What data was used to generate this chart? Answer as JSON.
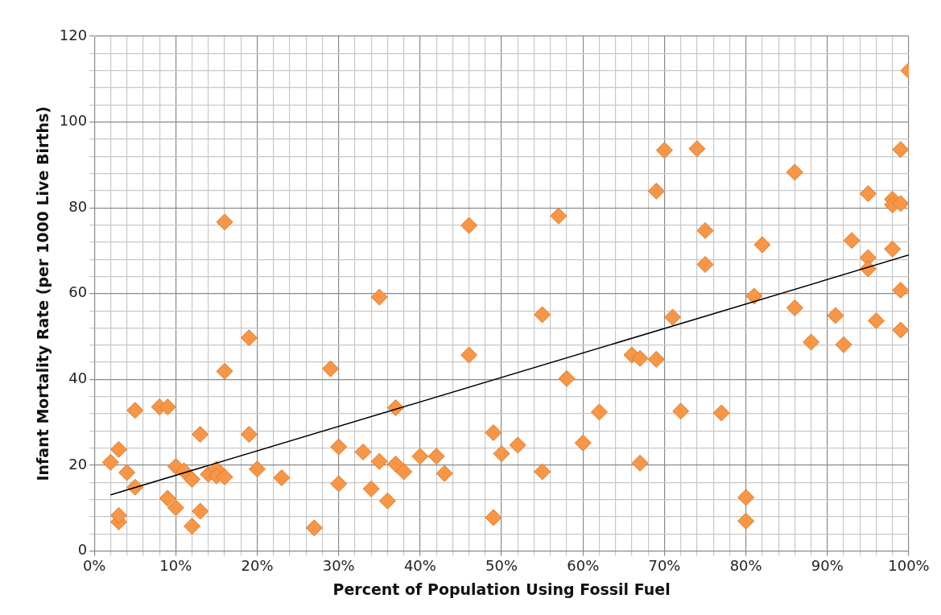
{
  "chart_data": {
    "type": "scatter",
    "xlabel": "Percent of Population Using Fossil Fuel",
    "ylabel": "Infant Mortality Rate (per 1000 Live Births)",
    "xlim": [
      0,
      100
    ],
    "ylim": [
      0,
      120
    ],
    "xticks": [
      {
        "value": 0,
        "label": "0%"
      },
      {
        "value": 2,
        "label": null
      },
      {
        "value": 4,
        "label": null
      },
      {
        "value": 6,
        "label": null
      },
      {
        "value": 8,
        "label": null
      },
      {
        "value": 10,
        "label": "10%"
      },
      {
        "value": 12,
        "label": null
      },
      {
        "value": 14,
        "label": null
      },
      {
        "value": 16,
        "label": null
      },
      {
        "value": 18,
        "label": null
      },
      {
        "value": 20,
        "label": "20%"
      },
      {
        "value": 22,
        "label": null
      },
      {
        "value": 24,
        "label": null
      },
      {
        "value": 26,
        "label": null
      },
      {
        "value": 28,
        "label": null
      },
      {
        "value": 30,
        "label": "30%"
      },
      {
        "value": 32,
        "label": null
      },
      {
        "value": 34,
        "label": null
      },
      {
        "value": 36,
        "label": null
      },
      {
        "value": 38,
        "label": null
      },
      {
        "value": 40,
        "label": "40%"
      },
      {
        "value": 42,
        "label": null
      },
      {
        "value": 44,
        "label": null
      },
      {
        "value": 46,
        "label": null
      },
      {
        "value": 48,
        "label": null
      },
      {
        "value": 50,
        "label": "50%"
      },
      {
        "value": 52,
        "label": null
      },
      {
        "value": 54,
        "label": null
      },
      {
        "value": 56,
        "label": null
      },
      {
        "value": 58,
        "label": null
      },
      {
        "value": 60,
        "label": "60%"
      },
      {
        "value": 62,
        "label": null
      },
      {
        "value": 64,
        "label": null
      },
      {
        "value": 66,
        "label": null
      },
      {
        "value": 68,
        "label": null
      },
      {
        "value": 70,
        "label": "70%"
      },
      {
        "value": 72,
        "label": null
      },
      {
        "value": 74,
        "label": null
      },
      {
        "value": 76,
        "label": null
      },
      {
        "value": 78,
        "label": null
      },
      {
        "value": 80,
        "label": "80%"
      },
      {
        "value": 82,
        "label": null
      },
      {
        "value": 84,
        "label": null
      },
      {
        "value": 86,
        "label": null
      },
      {
        "value": 88,
        "label": null
      },
      {
        "value": 90,
        "label": "90%"
      },
      {
        "value": 92,
        "label": null
      },
      {
        "value": 94,
        "label": null
      },
      {
        "value": 96,
        "label": null
      },
      {
        "value": 98,
        "label": null
      },
      {
        "value": 100,
        "label": "100%"
      }
    ],
    "yticks": [
      0,
      {
        "value": 4,
        "label": null
      },
      {
        "value": 8,
        "label": null
      },
      {
        "value": 12,
        "label": null
      },
      {
        "value": 16,
        "label": null
      },
      20,
      {
        "value": 24,
        "label": null
      },
      {
        "value": 28,
        "label": null
      },
      {
        "value": 32,
        "label": null
      },
      {
        "value": 36,
        "label": null
      },
      40,
      {
        "value": 44,
        "label": null
      },
      {
        "value": 48,
        "label": null
      },
      {
        "value": 52,
        "label": null
      },
      {
        "value": 56,
        "label": null
      },
      60,
      {
        "value": 64,
        "label": null
      },
      {
        "value": 68,
        "label": null
      },
      {
        "value": 72,
        "label": null
      },
      {
        "value": 76,
        "label": null
      },
      80,
      {
        "value": 84,
        "label": null
      },
      {
        "value": 88,
        "label": null
      },
      {
        "value": 92,
        "label": null
      },
      {
        "value": 96,
        "label": null
      },
      100,
      {
        "value": 104,
        "label": null
      },
      {
        "value": 108,
        "label": null
      },
      {
        "value": 112,
        "label": null
      },
      {
        "value": 116,
        "label": null
      },
      120
    ],
    "grid": true,
    "legend": false,
    "series": [
      {
        "marker": "diamond",
        "color": "#f79646",
        "x": [
          2,
          3,
          3,
          3,
          4,
          5,
          5,
          8,
          9,
          9,
          10,
          10,
          11,
          12,
          12,
          13,
          13,
          14,
          15,
          15,
          16,
          16,
          16,
          19,
          19,
          20,
          23,
          27,
          29,
          30,
          30,
          33,
          34,
          35,
          35,
          36,
          37,
          37,
          38,
          40,
          42,
          43,
          46,
          46,
          49,
          49,
          50,
          52,
          55,
          55,
          57,
          58,
          60,
          62,
          66,
          67,
          67,
          69,
          69,
          70,
          71,
          72,
          74,
          75,
          75,
          77,
          80,
          80,
          81,
          82,
          86,
          86,
          88,
          91,
          92,
          93,
          95,
          95,
          95,
          96,
          98,
          98,
          99,
          98,
          99,
          99,
          99,
          100
        ],
        "values": [
          20.7,
          23.7,
          6.8,
          8.3,
          18.3,
          14.9,
          32.8,
          33.6,
          33.6,
          12.3,
          19.7,
          10.1,
          18.7,
          16.7,
          5.8,
          27.2,
          9.3,
          17.9,
          19.1,
          17.5,
          76.7,
          41.9,
          17.3,
          49.7,
          27.2,
          19.1,
          17.1,
          5.4,
          42.5,
          24.3,
          15.7,
          23.1,
          14.5,
          59.2,
          20.9,
          11.7,
          33.4,
          20.3,
          18.5,
          22.1,
          22.1,
          18.1,
          75.9,
          45.7,
          27.6,
          7.8,
          22.7,
          24.7,
          55.1,
          18.5,
          78.1,
          40.2,
          25.2,
          32.4,
          45.7,
          44.9,
          20.5,
          44.7,
          83.9,
          93.4,
          54.5,
          32.6,
          93.8,
          74.7,
          66.8,
          32.2,
          12.5,
          7,
          59.4,
          71.4,
          88.3,
          56.7,
          48.7,
          54.9,
          48.1,
          72.4,
          83.3,
          68.4,
          65.8,
          53.7,
          82,
          80.7,
          81,
          70.4,
          93.6,
          60.8,
          51.5,
          112
        ]
      },
      {
        "type": "line",
        "marker": "none",
        "line_style": "solid",
        "color": "#000000",
        "x": [
          2,
          100
        ],
        "values": [
          13.1,
          69
        ]
      }
    ]
  }
}
